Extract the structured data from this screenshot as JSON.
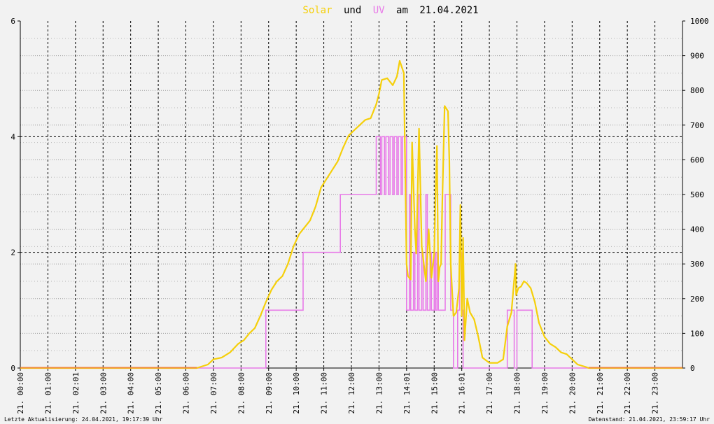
{
  "chart_data": {
    "type": "line",
    "title_parts": {
      "s1": "Solar",
      "und": "und",
      "s2": "UV",
      "am": "am",
      "date": "21.04.2021"
    },
    "colors": {
      "solar": "#f5cf0a",
      "uv": "#e87ae8",
      "baseline": "#f08a3c",
      "background": "#f2f2f2"
    },
    "y_left": {
      "min": 0,
      "max": 6,
      "ticks": [
        "0",
        "2",
        "4",
        "6"
      ]
    },
    "y_right": {
      "min": 0,
      "max": 1000,
      "ticks": [
        "0",
        "100",
        "200",
        "300",
        "400",
        "500",
        "600",
        "700",
        "800",
        "900",
        "1000"
      ]
    },
    "x_range_hours": [
      0,
      24
    ],
    "x_ticks": [
      "21. 00:00",
      "21. 01:00",
      "21. 02:01",
      "21. 03:00",
      "21. 04:00",
      "21. 05:00",
      "21. 06:00",
      "21. 07:00",
      "21. 08:00",
      "21. 09:00",
      "21. 10:00",
      "21. 11:00",
      "21. 12:00",
      "21. 13:00",
      "21. 14:01",
      "21. 15:00",
      "21. 16:01",
      "21. 17:00",
      "21. 18:00",
      "21. 19:00",
      "21. 20:00",
      "21. 21:00",
      "21. 22:00",
      "21. 23:00"
    ],
    "grid": true,
    "series": [
      {
        "name": "Solar",
        "axis": "right",
        "points": [
          [
            0,
            0
          ],
          [
            6.4,
            0
          ],
          [
            6.8,
            10
          ],
          [
            7.0,
            25
          ],
          [
            7.3,
            30
          ],
          [
            7.6,
            45
          ],
          [
            7.9,
            70
          ],
          [
            8.1,
            80
          ],
          [
            8.3,
            100
          ],
          [
            8.5,
            115
          ],
          [
            8.7,
            150
          ],
          [
            8.9,
            190
          ],
          [
            9.1,
            225
          ],
          [
            9.3,
            250
          ],
          [
            9.5,
            265
          ],
          [
            9.7,
            300
          ],
          [
            9.9,
            350
          ],
          [
            10.1,
            385
          ],
          [
            10.3,
            405
          ],
          [
            10.5,
            425
          ],
          [
            10.7,
            465
          ],
          [
            10.9,
            520
          ],
          [
            11.1,
            545
          ],
          [
            11.3,
            570
          ],
          [
            11.5,
            595
          ],
          [
            11.7,
            635
          ],
          [
            11.9,
            670
          ],
          [
            12.1,
            685
          ],
          [
            12.3,
            700
          ],
          [
            12.5,
            715
          ],
          [
            12.7,
            720
          ],
          [
            12.9,
            760
          ],
          [
            13.0,
            790
          ],
          [
            13.1,
            830
          ],
          [
            13.3,
            835
          ],
          [
            13.5,
            815
          ],
          [
            13.65,
            840
          ],
          [
            13.75,
            885
          ],
          [
            13.9,
            850
          ],
          [
            14.0,
            300
          ],
          [
            14.05,
            265
          ],
          [
            14.15,
            255
          ],
          [
            14.2,
            650
          ],
          [
            14.3,
            400
          ],
          [
            14.35,
            330
          ],
          [
            14.4,
            500
          ],
          [
            14.45,
            690
          ],
          [
            14.55,
            350
          ],
          [
            14.7,
            250
          ],
          [
            14.8,
            400
          ],
          [
            14.9,
            260
          ],
          [
            15.0,
            330
          ],
          [
            15.05,
            500
          ],
          [
            15.1,
            640
          ],
          [
            15.15,
            250
          ],
          [
            15.2,
            290
          ],
          [
            15.25,
            300
          ],
          [
            15.3,
            500
          ],
          [
            15.38,
            755
          ],
          [
            15.42,
            750
          ],
          [
            15.5,
            740
          ],
          [
            15.55,
            600
          ],
          [
            15.6,
            300
          ],
          [
            15.7,
            150
          ],
          [
            15.8,
            160
          ],
          [
            15.9,
            230
          ],
          [
            15.95,
            470
          ],
          [
            16.0,
            150
          ],
          [
            16.05,
            375
          ],
          [
            16.1,
            80
          ],
          [
            16.2,
            200
          ],
          [
            16.3,
            160
          ],
          [
            16.45,
            140
          ],
          [
            16.6,
            90
          ],
          [
            16.75,
            30
          ],
          [
            17.0,
            15
          ],
          [
            17.3,
            15
          ],
          [
            17.5,
            25
          ],
          [
            17.65,
            120
          ],
          [
            17.8,
            160
          ],
          [
            17.95,
            300
          ],
          [
            17.97,
            210
          ],
          [
            18.05,
            230
          ],
          [
            18.15,
            235
          ],
          [
            18.25,
            250
          ],
          [
            18.35,
            245
          ],
          [
            18.5,
            230
          ],
          [
            18.65,
            190
          ],
          [
            18.8,
            130
          ],
          [
            19.0,
            90
          ],
          [
            19.2,
            70
          ],
          [
            19.4,
            60
          ],
          [
            19.6,
            45
          ],
          [
            19.8,
            40
          ],
          [
            20.0,
            25
          ],
          [
            20.2,
            10
          ],
          [
            20.5,
            3
          ],
          [
            20.6,
            0
          ],
          [
            24,
            0
          ]
        ]
      },
      {
        "name": "UV",
        "axis": "left",
        "steps": [
          [
            0,
            0
          ],
          [
            8.9,
            0
          ],
          [
            8.9,
            1
          ],
          [
            10.25,
            1
          ],
          [
            10.25,
            2
          ],
          [
            11.6,
            2
          ],
          [
            11.6,
            3
          ],
          [
            12.9,
            3
          ],
          [
            12.9,
            4
          ],
          [
            13.05,
            4
          ],
          [
            13.05,
            3
          ],
          [
            13.1,
            3
          ],
          [
            13.1,
            4
          ],
          [
            13.2,
            4
          ],
          [
            13.2,
            3
          ],
          [
            13.25,
            3
          ],
          [
            13.25,
            4
          ],
          [
            13.35,
            4
          ],
          [
            13.35,
            3
          ],
          [
            13.4,
            3
          ],
          [
            13.4,
            4
          ],
          [
            13.5,
            4
          ],
          [
            13.5,
            3
          ],
          [
            13.55,
            3
          ],
          [
            13.55,
            4
          ],
          [
            13.65,
            4
          ],
          [
            13.65,
            3
          ],
          [
            13.7,
            3
          ],
          [
            13.7,
            4
          ],
          [
            13.8,
            4
          ],
          [
            13.8,
            3
          ],
          [
            13.85,
            3
          ],
          [
            13.85,
            4
          ],
          [
            14.0,
            4
          ],
          [
            14.0,
            1
          ],
          [
            14.1,
            1
          ],
          [
            14.1,
            3
          ],
          [
            14.15,
            3
          ],
          [
            14.15,
            1
          ],
          [
            14.25,
            1
          ],
          [
            14.25,
            2
          ],
          [
            14.3,
            2
          ],
          [
            14.3,
            1
          ],
          [
            14.4,
            1
          ],
          [
            14.4,
            3
          ],
          [
            14.45,
            3
          ],
          [
            14.45,
            1
          ],
          [
            14.55,
            1
          ],
          [
            14.55,
            2
          ],
          [
            14.6,
            2
          ],
          [
            14.6,
            1
          ],
          [
            14.7,
            1
          ],
          [
            14.7,
            3
          ],
          [
            14.75,
            3
          ],
          [
            14.75,
            1
          ],
          [
            14.85,
            1
          ],
          [
            14.85,
            2
          ],
          [
            14.9,
            2
          ],
          [
            14.9,
            1
          ],
          [
            15.0,
            1
          ],
          [
            15.0,
            2
          ],
          [
            15.05,
            2
          ],
          [
            15.05,
            1
          ],
          [
            15.1,
            1
          ],
          [
            15.1,
            2
          ],
          [
            15.15,
            2
          ],
          [
            15.15,
            1
          ],
          [
            15.4,
            1
          ],
          [
            15.4,
            3
          ],
          [
            15.6,
            3
          ],
          [
            15.6,
            1
          ],
          [
            15.7,
            1
          ],
          [
            15.7,
            0
          ],
          [
            15.85,
            0
          ],
          [
            15.85,
            1
          ],
          [
            15.92,
            1
          ],
          [
            15.92,
            2
          ],
          [
            16.0,
            2
          ],
          [
            16.0,
            1
          ],
          [
            16.05,
            1
          ],
          [
            16.05,
            0
          ],
          [
            17.65,
            0
          ],
          [
            17.65,
            1
          ],
          [
            17.9,
            1
          ],
          [
            17.9,
            0
          ],
          [
            18.0,
            0
          ],
          [
            18.0,
            1
          ],
          [
            18.55,
            1
          ],
          [
            18.55,
            0
          ],
          [
            24,
            0
          ]
        ]
      }
    ]
  },
  "footer": {
    "left": "Letzte Aktualisierung: 24.04.2021, 19:17:39 Uhr",
    "right": "Datenstand: 21.04.2021, 23:59:17 Uhr"
  }
}
